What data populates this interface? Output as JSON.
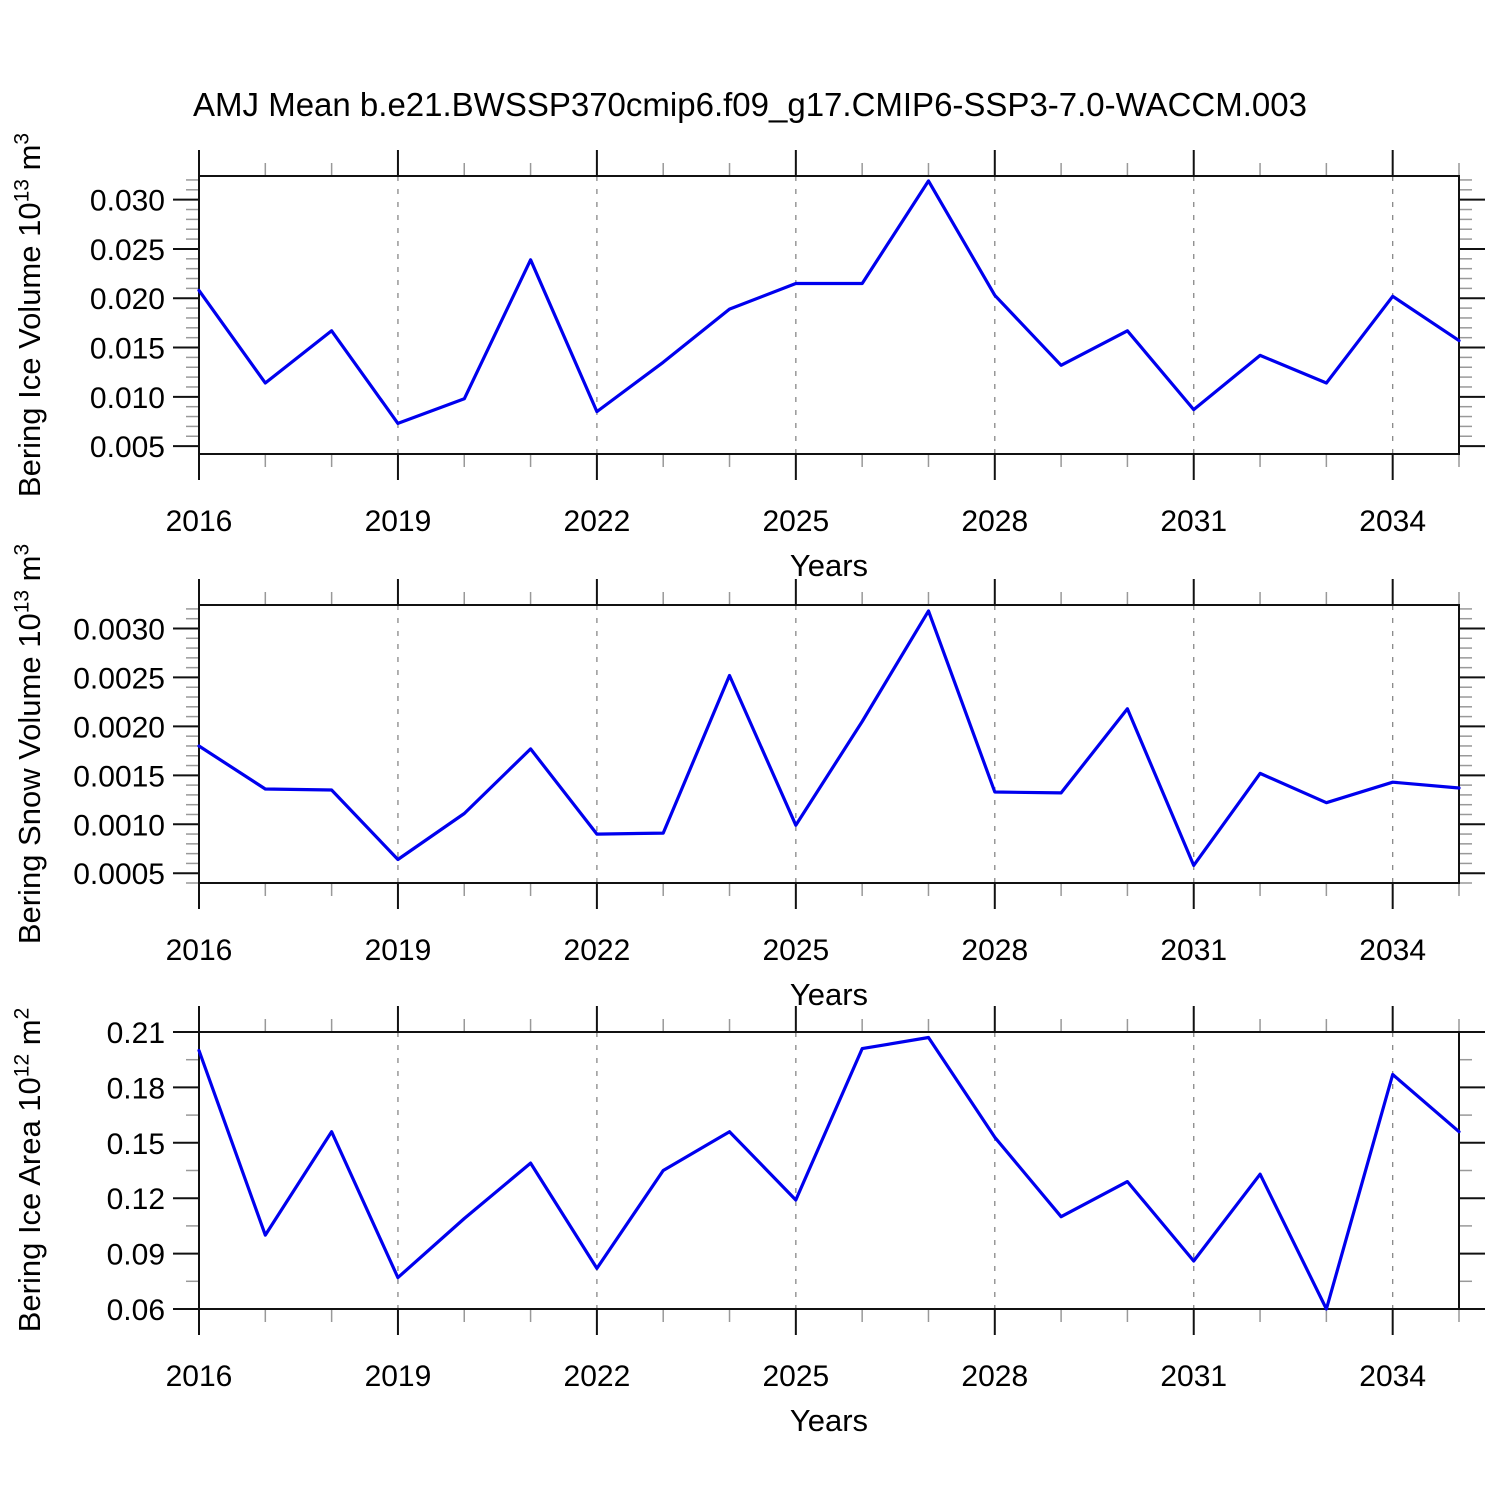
{
  "title": "AMJ Mean b.e21.BWSSP370cmip6.f09_g17.CMIP6-SSP3-7.0-WACCM.003",
  "colors": {
    "line": "#0000ee",
    "frame": "#111111",
    "minor_tick": "#999999",
    "grid": "#888888",
    "text": "#000000",
    "background": "#ffffff"
  },
  "chart_data": [
    {
      "id": "bering-ice-volume",
      "type": "line",
      "xlabel": "Years",
      "ylabel_prefix": "Bering Ice Volume 10",
      "ylabel_exp": "13",
      "ylabel_unit": " m",
      "ylabel_unit_exp": "3",
      "x": [
        2016,
        2017,
        2018,
        2019,
        2020,
        2021,
        2022,
        2023,
        2024,
        2025,
        2026,
        2027,
        2028,
        2029,
        2030,
        2031,
        2032,
        2033,
        2034,
        2035
      ],
      "values": [
        0.0208,
        0.0114,
        0.0167,
        0.0073,
        0.0098,
        0.0239,
        0.0085,
        0.0135,
        0.0189,
        0.0215,
        0.0215,
        0.0319,
        0.0203,
        0.0132,
        0.0167,
        0.0087,
        0.0142,
        0.0114,
        0.0202,
        0.0157
      ],
      "xlim": [
        2016,
        2035
      ],
      "ylim": [
        0.0042,
        0.0324
      ],
      "xticks_major": [
        2016,
        2019,
        2022,
        2025,
        2028,
        2031,
        2034
      ],
      "xtick_labels": [
        "2016",
        "2019",
        "2022",
        "2025",
        "2028",
        "2031",
        "2034"
      ],
      "xminor_step": 1,
      "yticks_major": [
        0.005,
        0.01,
        0.015,
        0.02,
        0.025,
        0.03
      ],
      "ytick_labels": [
        "0.005",
        "0.010",
        "0.015",
        "0.020",
        "0.025",
        "0.030"
      ],
      "yminor_step": 0.001,
      "grid_x": [
        2019,
        2022,
        2025,
        2028,
        2031,
        2034
      ],
      "grid": "vertical-dashed",
      "legend": "none"
    },
    {
      "id": "bering-snow-volume",
      "type": "line",
      "xlabel": "Years",
      "ylabel_prefix": "Bering Snow Volume 10",
      "ylabel_exp": "13",
      "ylabel_unit": " m",
      "ylabel_unit_exp": "3",
      "x": [
        2016,
        2017,
        2018,
        2019,
        2020,
        2021,
        2022,
        2023,
        2024,
        2025,
        2026,
        2027,
        2028,
        2029,
        2030,
        2031,
        2032,
        2033,
        2034,
        2035
      ],
      "values": [
        0.0018,
        0.00136,
        0.00135,
        0.00064,
        0.00111,
        0.00177,
        0.0009,
        0.00091,
        0.00252,
        0.00099,
        0.00205,
        0.00318,
        0.00133,
        0.00132,
        0.00218,
        0.00058,
        0.00152,
        0.00122,
        0.00143,
        0.00137
      ],
      "xlim": [
        2016,
        2035
      ],
      "ylim": [
        0.0004,
        0.00324
      ],
      "xticks_major": [
        2016,
        2019,
        2022,
        2025,
        2028,
        2031,
        2034
      ],
      "xtick_labels": [
        "2016",
        "2019",
        "2022",
        "2025",
        "2028",
        "2031",
        "2034"
      ],
      "xminor_step": 1,
      "yticks_major": [
        0.0005,
        0.001,
        0.0015,
        0.002,
        0.0025,
        0.003
      ],
      "ytick_labels": [
        "0.0005",
        "0.0010",
        "0.0015",
        "0.0020",
        "0.0025",
        "0.0030"
      ],
      "yminor_step": 0.0001,
      "grid_x": [
        2019,
        2022,
        2025,
        2028,
        2031,
        2034
      ],
      "grid": "vertical-dashed",
      "legend": "none"
    },
    {
      "id": "bering-ice-area",
      "type": "line",
      "xlabel": "Years",
      "ylabel_prefix": "Bering Ice Area 10",
      "ylabel_exp": "12",
      "ylabel_unit": " m",
      "ylabel_unit_exp": "2",
      "x": [
        2016,
        2017,
        2018,
        2019,
        2020,
        2021,
        2022,
        2023,
        2024,
        2025,
        2026,
        2027,
        2028,
        2029,
        2030,
        2031,
        2032,
        2033,
        2034,
        2035
      ],
      "values": [
        0.2,
        0.1,
        0.156,
        0.077,
        0.109,
        0.139,
        0.082,
        0.135,
        0.156,
        0.119,
        0.201,
        0.207,
        0.153,
        0.11,
        0.129,
        0.086,
        0.133,
        0.06,
        0.187,
        0.156
      ],
      "xlim": [
        2016,
        2035
      ],
      "ylim": [
        0.06,
        0.21
      ],
      "xticks_major": [
        2016,
        2019,
        2022,
        2025,
        2028,
        2031,
        2034
      ],
      "xtick_labels": [
        "2016",
        "2019",
        "2022",
        "2025",
        "2028",
        "2031",
        "2034"
      ],
      "xminor_step": 1,
      "yticks_major": [
        0.06,
        0.09,
        0.12,
        0.15,
        0.18,
        0.21
      ],
      "ytick_labels": [
        "0.06",
        "0.09",
        "0.12",
        "0.15",
        "0.18",
        "0.21"
      ],
      "yminor_step": 0.015,
      "grid_x": [
        2019,
        2022,
        2025,
        2028,
        2031,
        2034
      ],
      "grid": "vertical-dashed",
      "legend": "none"
    }
  ]
}
